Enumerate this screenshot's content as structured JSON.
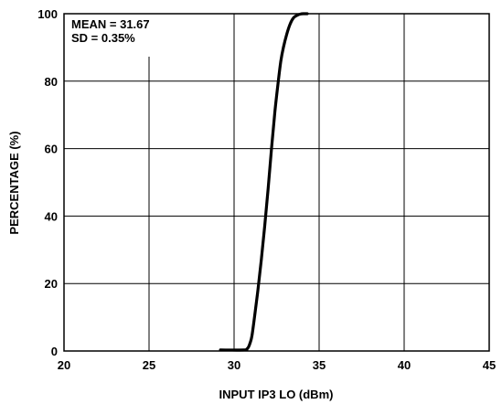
{
  "chart_data": {
    "type": "line",
    "xlabel": "INPUT IP3 LO (dBm)",
    "ylabel": "PERCENTAGE (%)",
    "xlim": [
      20,
      45
    ],
    "ylim": [
      0,
      100
    ],
    "x_ticks": [
      20,
      25,
      30,
      35,
      40,
      45
    ],
    "y_ticks": [
      0,
      20,
      40,
      60,
      80,
      100
    ],
    "x_tick_labels": [
      "20",
      "25",
      "30",
      "35",
      "40",
      "45"
    ],
    "y_tick_labels": [
      "0",
      "20",
      "40",
      "60",
      "80",
      "100"
    ],
    "grid": true,
    "annotations": [
      "MEAN = 31.67",
      "SD = 0.35%"
    ],
    "series": [
      {
        "x": [
          29.2,
          30.6,
          30.75,
          30.85,
          30.95,
          31.05,
          31.2,
          31.4,
          31.6,
          31.8,
          32.0,
          32.2,
          32.4,
          32.6,
          32.75,
          32.9,
          33.1,
          33.3,
          33.5,
          33.7,
          33.9,
          34.1,
          34.3
        ],
        "values": [
          0.3,
          0.3,
          0.6,
          1.2,
          2.5,
          4.5,
          10,
          18,
          27,
          37,
          48,
          60,
          71,
          80,
          86,
          90,
          94,
          97,
          98.8,
          99.5,
          99.9,
          100,
          100
        ],
        "color": "#000000"
      }
    ]
  }
}
